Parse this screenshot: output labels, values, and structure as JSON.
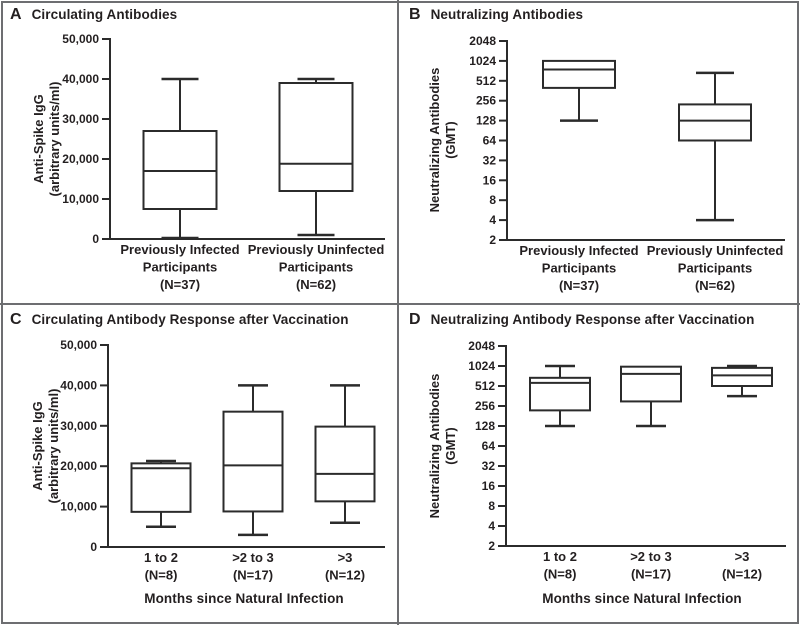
{
  "figure": {
    "background": "#ffffff",
    "frame_color": "#6d6e71",
    "line_color": "#2b2b2b",
    "text_color": "#231f20"
  },
  "chart_data": [
    {
      "letter": "A",
      "title": "Circulating Antibodies",
      "type": "box",
      "yscale": "linear",
      "ylim": [
        0,
        50000
      ],
      "yticks": [
        0,
        10000,
        20000,
        30000,
        40000,
        50000
      ],
      "ytick_labels": [
        "0",
        "10,000",
        "20,000",
        "30,000",
        "40,000",
        "50,000"
      ],
      "ylabel_lines": [
        "Anti-Spike IgG",
        "(arbitrary units/ml)"
      ],
      "xlabel": "",
      "boxes": [
        {
          "label_lines": [
            "Previously Infected",
            "Participants",
            "(N=37)"
          ],
          "min": 250,
          "q1": 7500,
          "median": 17000,
          "q3": 27000,
          "max": 40000
        },
        {
          "label_lines": [
            "Previously Uninfected",
            "Participants",
            "(N=62)"
          ],
          "min": 1000,
          "q1": 12000,
          "median": 18800,
          "q3": 39000,
          "max": 40000
        }
      ]
    },
    {
      "letter": "B",
      "title": "Neutralizing Antibodies",
      "type": "box",
      "yscale": "log2",
      "ylim": [
        2,
        2048
      ],
      "yticks": [
        2048,
        1024,
        512,
        256,
        128,
        64,
        32,
        16,
        8,
        4,
        2
      ],
      "ytick_labels": [
        "2048",
        "1024",
        "512",
        "256",
        "128",
        "64",
        "32",
        "16",
        "8",
        "4",
        "2"
      ],
      "ylabel_lines": [
        "Neutralizing Antibodies",
        "(GMT)"
      ],
      "xlabel": "",
      "boxes": [
        {
          "label_lines": [
            "Previously Infected",
            "Participants",
            "(N=37)"
          ],
          "min": 128,
          "q1": 400,
          "median": 760,
          "q3": 1024,
          "max": 1024
        },
        {
          "label_lines": [
            "Previously Uninfected",
            "Participants",
            "(N=62)"
          ],
          "min": 4,
          "q1": 64,
          "median": 128,
          "q3": 225,
          "max": 675
        }
      ]
    },
    {
      "letter": "C",
      "title": "Circulating Antibody Response after Vaccination",
      "type": "box",
      "yscale": "linear",
      "ylim": [
        0,
        50000
      ],
      "yticks": [
        0,
        10000,
        20000,
        30000,
        40000,
        50000
      ],
      "ytick_labels": [
        "0",
        "10,000",
        "20,000",
        "30,000",
        "40,000",
        "50,000"
      ],
      "ylabel_lines": [
        "Anti-Spike IgG",
        "(arbitrary units/ml)"
      ],
      "xlabel": "Months since Natural Infection",
      "boxes": [
        {
          "label_lines": [
            "1 to 2",
            "(N=8)"
          ],
          "min": 5000,
          "q1": 8700,
          "median": 19500,
          "q3": 20700,
          "max": 21300
        },
        {
          "label_lines": [
            ">2 to 3",
            "(N=17)"
          ],
          "min": 3000,
          "q1": 8800,
          "median": 20200,
          "q3": 33500,
          "max": 40000
        },
        {
          "label_lines": [
            ">3",
            "(N=12)"
          ],
          "min": 6000,
          "q1": 11300,
          "median": 18100,
          "q3": 29800,
          "max": 40000
        }
      ]
    },
    {
      "letter": "D",
      "title": "Neutralizing Antibody Response after Vaccination",
      "type": "box",
      "yscale": "log2",
      "ylim": [
        2,
        2048
      ],
      "yticks": [
        2048,
        1024,
        512,
        256,
        128,
        64,
        32,
        16,
        8,
        4,
        2
      ],
      "ytick_labels": [
        "2048",
        "1024",
        "512",
        "256",
        "128",
        "64",
        "32",
        "16",
        "8",
        "4",
        "2"
      ],
      "ylabel_lines": [
        "Neutralizing Antibodies",
        "(GMT)"
      ],
      "xlabel": "Months since Natural Infection",
      "boxes": [
        {
          "label_lines": [
            "1 to 2",
            "(N=8)"
          ],
          "min": 128,
          "q1": 220,
          "median": 570,
          "q3": 680,
          "max": 1024
        },
        {
          "label_lines": [
            ">2 to 3",
            "(N=17)"
          ],
          "min": 128,
          "q1": 300,
          "median": 780,
          "q3": 1000,
          "max": 1000
        },
        {
          "label_lines": [
            ">3",
            "(N=12)"
          ],
          "min": 360,
          "q1": 512,
          "median": 740,
          "q3": 960,
          "max": 1024
        }
      ]
    }
  ]
}
